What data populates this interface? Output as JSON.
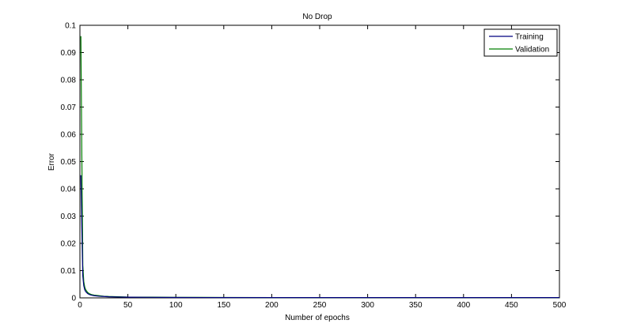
{
  "chart_data": {
    "type": "line",
    "title": "No Drop",
    "xlabel": "Number of epochs",
    "ylabel": "Error",
    "xlim": [
      0,
      500
    ],
    "ylim": [
      0,
      0.1
    ],
    "xticks": [
      "0",
      "50",
      "100",
      "150",
      "200",
      "250",
      "300",
      "350",
      "400",
      "450",
      "500"
    ],
    "yticks": [
      "0",
      "0.01",
      "0.02",
      "0.03",
      "0.04",
      "0.05",
      "0.06",
      "0.07",
      "0.08",
      "0.09",
      "0.1"
    ],
    "grid": false,
    "legend_position": "top-right",
    "series": [
      {
        "name": "Training",
        "color": "#00007f",
        "x": [
          1,
          2,
          3,
          4,
          5,
          6,
          8,
          10,
          12,
          15,
          20,
          25,
          30,
          40,
          50,
          75,
          100,
          150,
          200,
          250,
          300,
          350,
          400,
          450,
          500
        ],
        "y": [
          0.045,
          0.026,
          0.008,
          0.0045,
          0.003,
          0.0023,
          0.0016,
          0.0012,
          0.001,
          0.0008,
          0.0006,
          0.0005,
          0.0004,
          0.0003,
          0.00025,
          0.0002,
          0.00015,
          0.0001,
          0.0001,
          0.0001,
          0.0001,
          0.0001,
          0.0001,
          0.0001,
          0.0001
        ]
      },
      {
        "name": "Validation",
        "color": "#007f00",
        "x": [
          1,
          2,
          3,
          4,
          5,
          6,
          8,
          10,
          12,
          15,
          20,
          25,
          30,
          40,
          50,
          75,
          100,
          150,
          200,
          250,
          300,
          350,
          400,
          450,
          500
        ],
        "y": [
          0.096,
          0.052,
          0.012,
          0.006,
          0.004,
          0.003,
          0.002,
          0.0015,
          0.0012,
          0.001,
          0.0008,
          0.0006,
          0.0005,
          0.0004,
          0.0003,
          0.00025,
          0.0002,
          0.00015,
          0.00012,
          0.0001,
          0.0001,
          0.0001,
          0.0001,
          0.0001,
          0.0001
        ]
      }
    ]
  }
}
